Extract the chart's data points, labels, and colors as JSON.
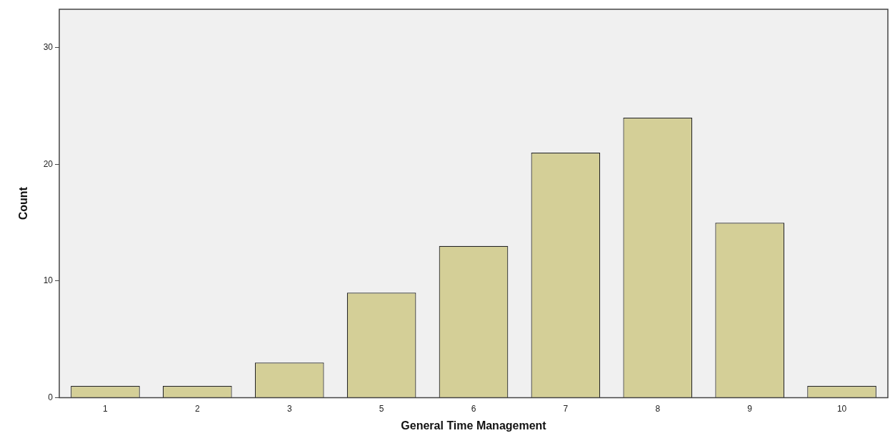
{
  "chart_data": {
    "type": "bar",
    "xlabel": "General Time Management",
    "ylabel": "Count",
    "categories": [
      "1",
      "2",
      "3",
      "5",
      "6",
      "7",
      "8",
      "9",
      "10"
    ],
    "values": [
      1,
      1,
      3,
      9,
      13,
      21,
      24,
      15,
      1
    ],
    "color": "#d4cf97",
    "ylim": [
      0,
      33.3
    ],
    "yticks": [
      0,
      10,
      20,
      30
    ],
    "grid": false,
    "legend": false
  }
}
